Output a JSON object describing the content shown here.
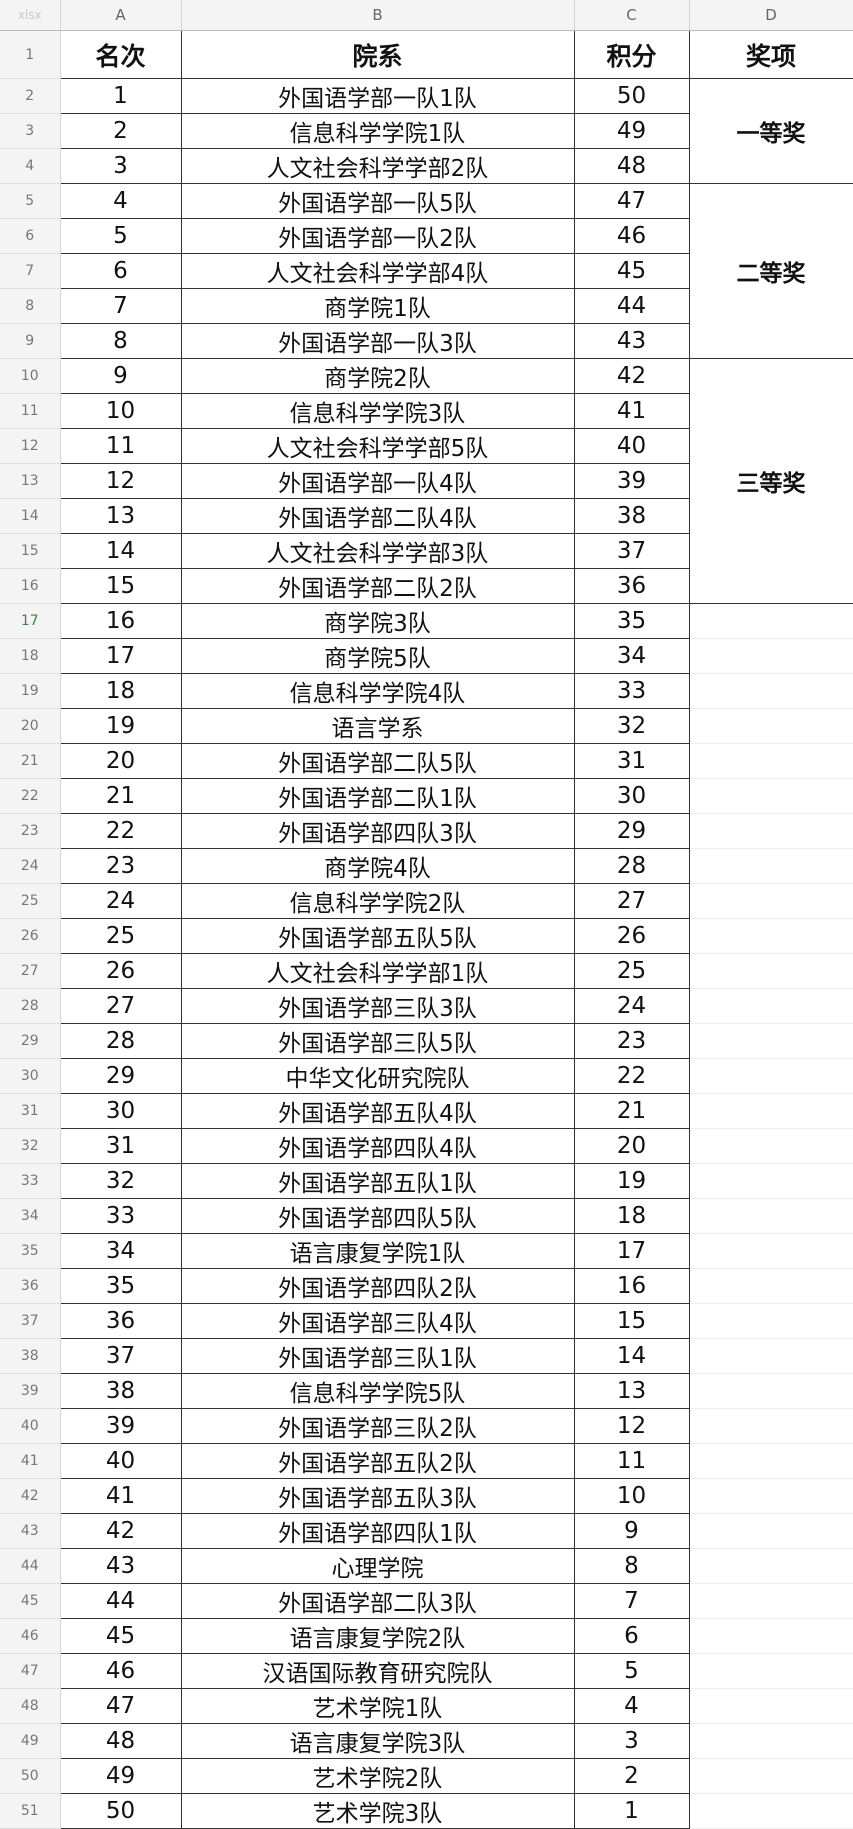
{
  "file_type": "xlsx",
  "columns": [
    "A",
    "B",
    "C",
    "D"
  ],
  "header": {
    "rank": "名次",
    "dept": "院系",
    "score": "积分",
    "award": "奖项"
  },
  "selected_row": 17,
  "awards": [
    {
      "label": "一等奖",
      "rows": 3
    },
    {
      "label": "二等奖",
      "rows": 5
    },
    {
      "label": "三等奖",
      "rows": 7
    }
  ],
  "rows": [
    [
      "1",
      "外国语学部一队1队",
      "50"
    ],
    [
      "2",
      "信息科学学院1队",
      "49"
    ],
    [
      "3",
      "人文社会科学学部2队",
      "48"
    ],
    [
      "4",
      "外国语学部一队5队",
      "47"
    ],
    [
      "5",
      "外国语学部一队2队",
      "46"
    ],
    [
      "6",
      "人文社会科学学部4队",
      "45"
    ],
    [
      "7",
      "商学院1队",
      "44"
    ],
    [
      "8",
      "外国语学部一队3队",
      "43"
    ],
    [
      "9",
      "商学院2队",
      "42"
    ],
    [
      "10",
      "信息科学学院3队",
      "41"
    ],
    [
      "11",
      "人文社会科学学部5队",
      "40"
    ],
    [
      "12",
      "外国语学部一队4队",
      "39"
    ],
    [
      "13",
      "外国语学部二队4队",
      "38"
    ],
    [
      "14",
      "人文社会科学学部3队",
      "37"
    ],
    [
      "15",
      "外国语学部二队2队",
      "36"
    ],
    [
      "16",
      "商学院3队",
      "35"
    ],
    [
      "17",
      "商学院5队",
      "34"
    ],
    [
      "18",
      "信息科学学院4队",
      "33"
    ],
    [
      "19",
      "语言学系",
      "32"
    ],
    [
      "20",
      "外国语学部二队5队",
      "31"
    ],
    [
      "21",
      "外国语学部二队1队",
      "30"
    ],
    [
      "22",
      "外国语学部四队3队",
      "29"
    ],
    [
      "23",
      "商学院4队",
      "28"
    ],
    [
      "24",
      "信息科学学院2队",
      "27"
    ],
    [
      "25",
      "外国语学部五队5队",
      "26"
    ],
    [
      "26",
      "人文社会科学学部1队",
      "25"
    ],
    [
      "27",
      "外国语学部三队3队",
      "24"
    ],
    [
      "28",
      "外国语学部三队5队",
      "23"
    ],
    [
      "29",
      "中华文化研究院队",
      "22"
    ],
    [
      "30",
      "外国语学部五队4队",
      "21"
    ],
    [
      "31",
      "外国语学部四队4队",
      "20"
    ],
    [
      "32",
      "外国语学部五队1队",
      "19"
    ],
    [
      "33",
      "外国语学部四队5队",
      "18"
    ],
    [
      "34",
      "语言康复学院1队",
      "17"
    ],
    [
      "35",
      "外国语学部四队2队",
      "16"
    ],
    [
      "36",
      "外国语学部三队4队",
      "15"
    ],
    [
      "37",
      "外国语学部三队1队",
      "14"
    ],
    [
      "38",
      "信息科学学院5队",
      "13"
    ],
    [
      "39",
      "外国语学部三队2队",
      "12"
    ],
    [
      "40",
      "外国语学部五队2队",
      "11"
    ],
    [
      "41",
      "外国语学部五队3队",
      "10"
    ],
    [
      "42",
      "外国语学部四队1队",
      "9"
    ],
    [
      "43",
      "心理学院",
      "8"
    ],
    [
      "44",
      "外国语学部二队3队",
      "7"
    ],
    [
      "45",
      "语言康复学院2队",
      "6"
    ],
    [
      "46",
      "汉语国际教育研究院队",
      "5"
    ],
    [
      "47",
      "艺术学院1队",
      "4"
    ],
    [
      "48",
      "语言康复学院3队",
      "3"
    ],
    [
      "49",
      "艺术学院2队",
      "2"
    ],
    [
      "50",
      "艺术学院3队",
      "1"
    ]
  ]
}
